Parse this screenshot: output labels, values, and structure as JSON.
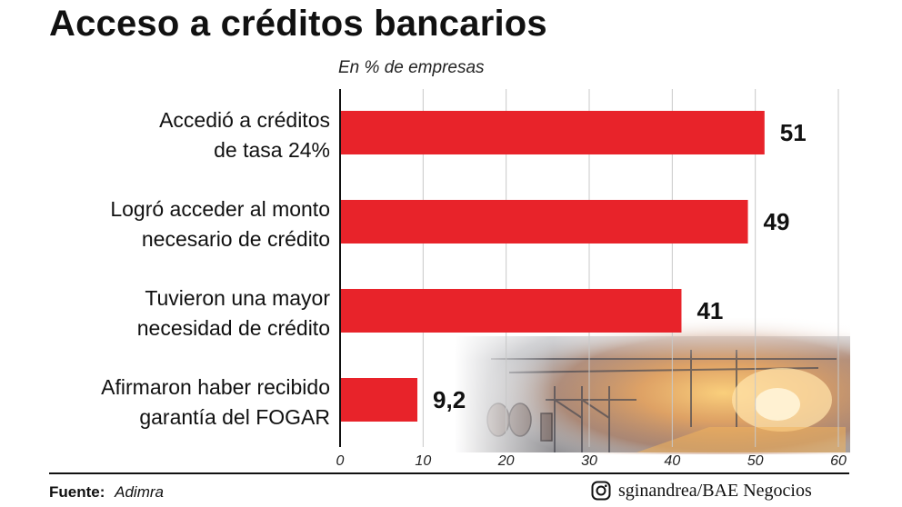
{
  "header": {
    "title": "Acceso a créditos bancarios",
    "subtitle": "En % de empresas"
  },
  "chart_data": {
    "type": "bar",
    "orientation": "horizontal",
    "title": "Acceso a créditos bancarios",
    "subtitle": "En % de empresas",
    "categories": [
      [
        "Accedió a créditos",
        "de tasa 24%"
      ],
      [
        "Logró acceder al monto",
        "necesario de crédito"
      ],
      [
        "Tuvieron una mayor",
        "necesidad de crédito"
      ],
      [
        "Afirmaron haber recibido",
        "garantía del FOGAR"
      ]
    ],
    "values": [
      51,
      49,
      41,
      9.2
    ],
    "value_labels": [
      "51",
      "49",
      "41",
      "9,2"
    ],
    "xlim": [
      0,
      60
    ],
    "xticks": [
      0,
      10,
      20,
      30,
      40,
      50,
      60
    ],
    "grid": true,
    "bar_color": "#e8232a",
    "background_image": "steel-mill-photo"
  },
  "footer": {
    "source_label": "Fuente:",
    "source_value": "Adimra",
    "credit_icon": "instagram-icon",
    "credit_text": "sginandrea/BAE Negocios"
  }
}
